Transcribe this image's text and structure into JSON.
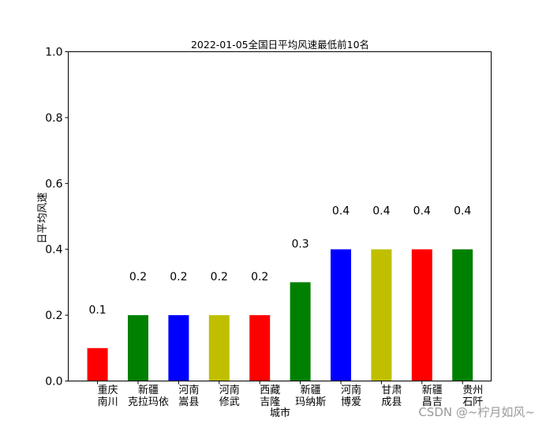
{
  "chart_data": {
    "type": "bar",
    "title": "2022-01-05全国日平均风速最低前10名",
    "xlabel": "城市",
    "ylabel": "日平均风速",
    "ylim": [
      0,
      1.0
    ],
    "yticks": [
      "0.0",
      "0.2",
      "0.4",
      "0.6",
      "0.8",
      "1.0"
    ],
    "categories": [
      [
        "重庆",
        "南川"
      ],
      [
        "新疆",
        "克拉玛依"
      ],
      [
        "河南",
        "嵩县"
      ],
      [
        "河南",
        "修武"
      ],
      [
        "西藏",
        "吉隆"
      ],
      [
        "新疆",
        "玛纳斯"
      ],
      [
        "河南",
        "博爱"
      ],
      [
        "甘肃",
        "成县"
      ],
      [
        "新疆",
        "昌吉"
      ],
      [
        "贵州",
        "石阡"
      ]
    ],
    "values": [
      0.1,
      0.2,
      0.2,
      0.2,
      0.2,
      0.3,
      0.4,
      0.4,
      0.4,
      0.4
    ],
    "value_labels": [
      "0.1",
      "0.2",
      "0.2",
      "0.2",
      "0.2",
      "0.3",
      "0.4",
      "0.4",
      "0.4",
      "0.4"
    ],
    "colors": [
      "#ff0000",
      "#008000",
      "#0000ff",
      "#bfbf00",
      "#ff0000",
      "#008000",
      "#0000ff",
      "#bfbf00",
      "#ff0000",
      "#008000"
    ],
    "grid": false,
    "legend": "none"
  },
  "watermark": "CSDN @~柠月如风~"
}
